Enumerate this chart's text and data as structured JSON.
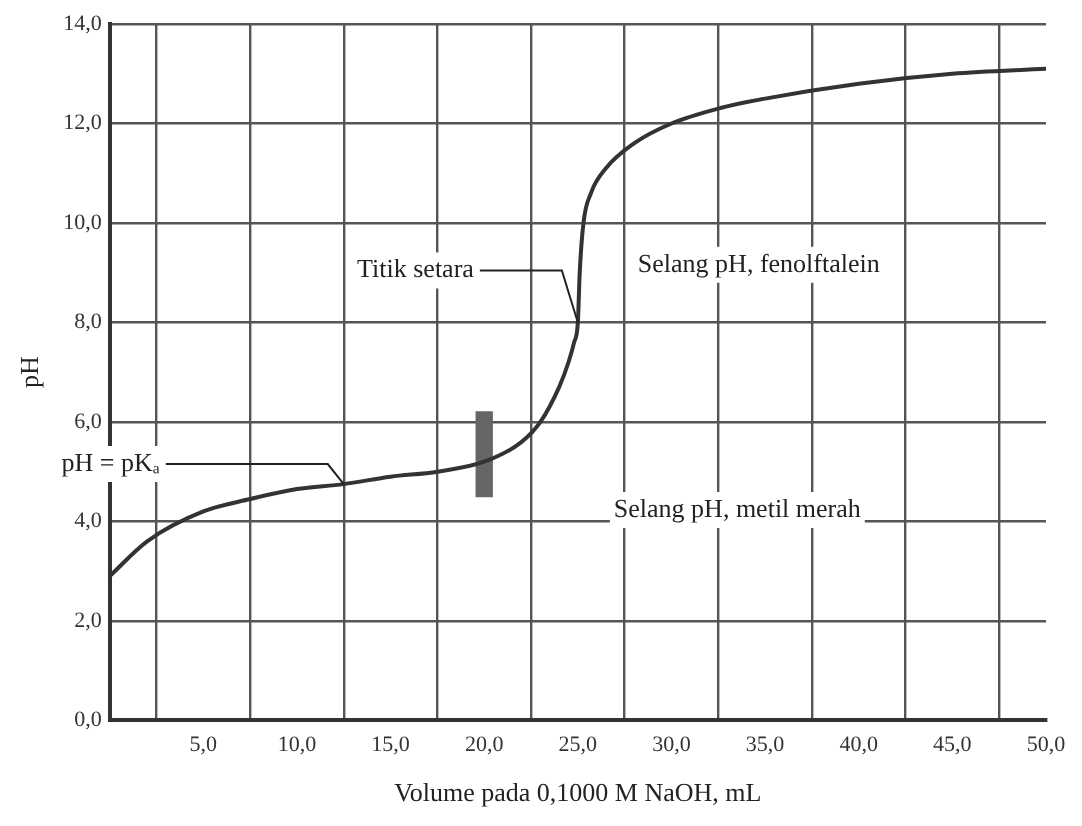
{
  "chart_data": {
    "type": "line",
    "xlabel": "Volume pada 0,1000 M NaOH, mL",
    "ylabel": "pH",
    "xlim": [
      0,
      50
    ],
    "ylim": [
      0,
      14
    ],
    "xticks": [
      {
        "value": 5,
        "label": "5,0"
      },
      {
        "value": 10,
        "label": "10,0"
      },
      {
        "value": 15,
        "label": "15,0"
      },
      {
        "value": 20,
        "label": "20,0"
      },
      {
        "value": 25,
        "label": "25,0"
      },
      {
        "value": 30,
        "label": "30,0"
      },
      {
        "value": 35,
        "label": "35,0"
      },
      {
        "value": 40,
        "label": "40,0"
      },
      {
        "value": 45,
        "label": "45,0"
      },
      {
        "value": 50,
        "label": "50,0"
      }
    ],
    "yticks": [
      {
        "value": 0,
        "label": "0,0"
      },
      {
        "value": 2,
        "label": "2,0"
      },
      {
        "value": 4,
        "label": "4,0"
      },
      {
        "value": 6,
        "label": "6,0"
      },
      {
        "value": 8,
        "label": "8,0"
      },
      {
        "value": 10,
        "label": "10,0"
      },
      {
        "value": 12,
        "label": "12,0"
      },
      {
        "value": 14,
        "label": "14,0"
      }
    ],
    "grid": true,
    "legend": false,
    "marker": "none",
    "line_style": "solid",
    "series": [
      {
        "color": "#333333",
        "x": [
          0,
          2,
          5,
          7.5,
          10,
          12.5,
          15,
          17.5,
          20,
          22,
          23,
          24,
          24.5,
          24.8,
          25,
          25.1,
          25.3,
          25.7,
          26.5,
          28,
          30,
          32.5,
          35,
          40,
          45,
          50
        ],
        "values": [
          2.9,
          3.6,
          4.2,
          4.45,
          4.65,
          4.75,
          4.9,
          5.0,
          5.2,
          5.6,
          6.0,
          6.7,
          7.2,
          7.6,
          8.0,
          9.0,
          10.0,
          10.6,
          11.1,
          11.6,
          12.0,
          12.3,
          12.5,
          12.8,
          13.0,
          13.1
        ]
      },
      {
        "type": "bar",
        "color": "#666666",
        "x": [
          20
        ],
        "base": [
          4.5
        ],
        "values": [
          1.7
        ]
      }
    ],
    "annotations": [
      {
        "text": "pH = pKₐ",
        "x": 12.5,
        "y": 4.75
      },
      {
        "text": "Titik setara",
        "x": 25,
        "y": 8
      },
      "Selang pH, fenolftalein",
      "Selang pH, metil merah"
    ]
  }
}
